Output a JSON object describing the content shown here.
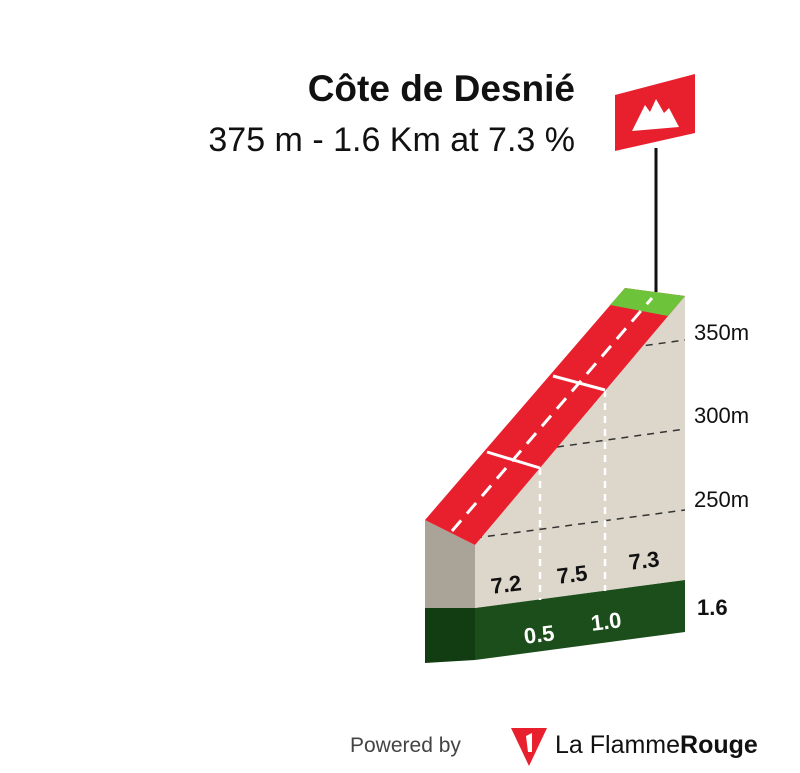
{
  "header": {
    "title": "Côte de Desnié",
    "subtitle": "375 m - 1.6 Km at 7.3 %"
  },
  "altitude_labels": [
    "350m",
    "300m",
    "250m"
  ],
  "gradients": [
    "7.2",
    "7.5",
    "7.3"
  ],
  "distances": [
    "0.5",
    "1.0"
  ],
  "total_distance": "1.6",
  "footer": {
    "powered_by": "Powered by",
    "brand_light": "La Flamme",
    "brand_bold": "Rouge"
  }
}
